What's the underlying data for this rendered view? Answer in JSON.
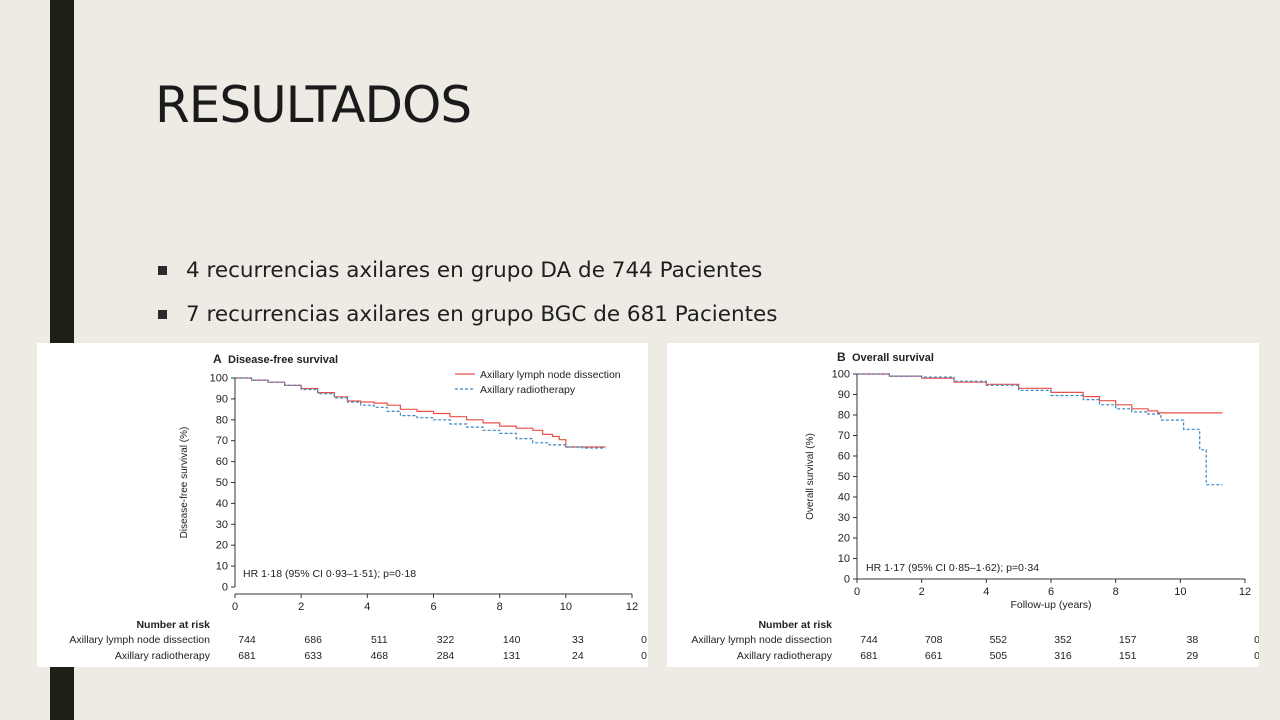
{
  "slide": {
    "title": "RESULTADOS",
    "bullets": [
      "4 recurrencias axilares en grupo DA  de 744 Pacientes",
      "7 recurrencias axilares en grupo BGC de 681 Pacientes"
    ]
  },
  "chart_data": [
    {
      "type": "line",
      "panel_letter": "A",
      "title": "Disease-free survival",
      "xlabel": "",
      "ylabel": "Disease-free survival (%)",
      "xlim": [
        0,
        12
      ],
      "ylim": [
        0,
        100
      ],
      "x_ticks": [
        0,
        2,
        4,
        6,
        8,
        10,
        12
      ],
      "y_ticks": [
        0,
        10,
        20,
        30,
        40,
        50,
        60,
        70,
        80,
        90,
        100
      ],
      "grid": false,
      "legend_position": "top-right",
      "annotation": "HR 1·18 (95% CI 0·93–1·51); p=0·18",
      "series": [
        {
          "name": "Axillary lymph node dissection",
          "color": "#e8524a",
          "dash": false,
          "points": [
            [
              0,
              100
            ],
            [
              0.5,
              99
            ],
            [
              1,
              98
            ],
            [
              1.5,
              96.5
            ],
            [
              2,
              95
            ],
            [
              2.5,
              93
            ],
            [
              3,
              91
            ],
            [
              3.4,
              89
            ],
            [
              3.8,
              88.5
            ],
            [
              4.2,
              88
            ],
            [
              4.6,
              87
            ],
            [
              5,
              85
            ],
            [
              5.5,
              84
            ],
            [
              6,
              83
            ],
            [
              6.5,
              81.5
            ],
            [
              7,
              80
            ],
            [
              7.5,
              78.5
            ],
            [
              8,
              77
            ],
            [
              8.5,
              76
            ],
            [
              9,
              75
            ],
            [
              9.3,
              73
            ],
            [
              9.6,
              72
            ],
            [
              9.8,
              70.5
            ],
            [
              10,
              67
            ],
            [
              10.5,
              67
            ],
            [
              11.2,
              67
            ]
          ]
        },
        {
          "name": "Axillary radiotherapy",
          "color": "#3a86c6",
          "dash": true,
          "points": [
            [
              0,
              100
            ],
            [
              0.5,
              99
            ],
            [
              1,
              98
            ],
            [
              1.5,
              96.5
            ],
            [
              2,
              94.5
            ],
            [
              2.5,
              92.5
            ],
            [
              3,
              90.5
            ],
            [
              3.4,
              88.5
            ],
            [
              3.8,
              87
            ],
            [
              4.2,
              86
            ],
            [
              4.6,
              84
            ],
            [
              5,
              82
            ],
            [
              5.5,
              81
            ],
            [
              6,
              80
            ],
            [
              6.5,
              78
            ],
            [
              7,
              76.5
            ],
            [
              7.5,
              75
            ],
            [
              8,
              73.5
            ],
            [
              8.5,
              71
            ],
            [
              9,
              69
            ],
            [
              9.5,
              68
            ],
            [
              10,
              67
            ],
            [
              10.5,
              66.5
            ],
            [
              11.2,
              66.5
            ]
          ]
        }
      ],
      "risk_table": {
        "header": "Number at risk",
        "rows": [
          {
            "label": "Axillary lymph node dissection",
            "values": [
              "744",
              "686",
              "511",
              "322",
              "140",
              "33",
              "0"
            ]
          },
          {
            "label": "Axillary radiotherapy",
            "values": [
              "681",
              "633",
              "468",
              "284",
              "131",
              "24",
              "0"
            ]
          }
        ]
      }
    },
    {
      "type": "line",
      "panel_letter": "B",
      "title": "Overall survival",
      "xlabel": "Follow-up (years)",
      "ylabel": "Overall survival (%)",
      "xlim": [
        0,
        12
      ],
      "ylim": [
        0,
        100
      ],
      "x_ticks": [
        0,
        2,
        4,
        6,
        8,
        10,
        12
      ],
      "y_ticks": [
        0,
        10,
        20,
        30,
        40,
        50,
        60,
        70,
        80,
        90,
        100
      ],
      "grid": false,
      "annotation": "HR 1·17 (95% CI 0·85–1·62); p=0·34",
      "series": [
        {
          "name": "Axillary lymph node dissection",
          "color": "#e8524a",
          "dash": false,
          "points": [
            [
              0,
              100
            ],
            [
              1,
              99
            ],
            [
              2,
              98
            ],
            [
              3,
              96
            ],
            [
              4,
              95
            ],
            [
              5,
              93
            ],
            [
              6,
              91
            ],
            [
              7,
              89
            ],
            [
              7.5,
              87
            ],
            [
              8,
              85
            ],
            [
              8.5,
              83
            ],
            [
              9,
              82
            ],
            [
              9.3,
              81
            ],
            [
              11.3,
              81
            ]
          ]
        },
        {
          "name": "Axillary radiotherapy",
          "color": "#3a86c6",
          "dash": true,
          "points": [
            [
              0,
              100
            ],
            [
              1,
              99
            ],
            [
              2,
              98.5
            ],
            [
              3,
              96.5
            ],
            [
              4,
              94.5
            ],
            [
              5,
              92
            ],
            [
              6,
              89.5
            ],
            [
              7,
              87.5
            ],
            [
              7.5,
              85
            ],
            [
              8,
              83
            ],
            [
              8.5,
              81.5
            ],
            [
              9,
              80.5
            ],
            [
              9.4,
              77.5
            ],
            [
              9.8,
              77.5
            ],
            [
              10.1,
              73
            ],
            [
              10.5,
              73
            ],
            [
              10.6,
              63
            ],
            [
              10.8,
              63
            ],
            [
              10.8,
              46
            ],
            [
              11.3,
              46
            ]
          ]
        }
      ],
      "risk_table": {
        "header": "Number at risk",
        "rows": [
          {
            "label": "Axillary lymph node dissection",
            "values": [
              "744",
              "708",
              "552",
              "352",
              "157",
              "38",
              "0"
            ]
          },
          {
            "label": "Axillary radiotherapy",
            "values": [
              "681",
              "661",
              "505",
              "316",
              "151",
              "29",
              "0"
            ]
          }
        ]
      }
    }
  ]
}
